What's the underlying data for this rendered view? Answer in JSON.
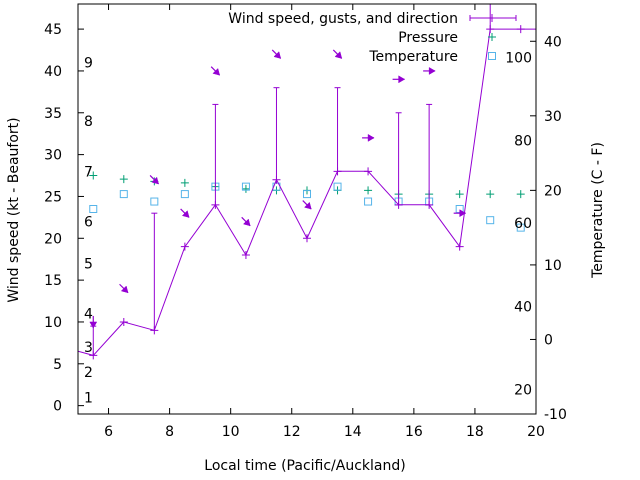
{
  "chart_data": {
    "type": "line",
    "xlabel": "Local time (Pacific/Auckland)",
    "ylabel": "Wind speed (kt - Beaufort)",
    "y2label": "Temperature (C - F)",
    "xlim": [
      5,
      20
    ],
    "ylim": [
      -1,
      48
    ],
    "y2lim": [
      -10,
      45
    ],
    "x_ticks": [
      6,
      8,
      10,
      12,
      14,
      16,
      18,
      20
    ],
    "y_ticks": [
      0,
      5,
      10,
      15,
      20,
      25,
      30,
      35,
      40,
      45
    ],
    "y2_ticks": [
      -10,
      0,
      10,
      20,
      30,
      40
    ],
    "beaufort_labels": [
      {
        "label": "1",
        "speed": 1
      },
      {
        "label": "2",
        "speed": 4
      },
      {
        "label": "3",
        "speed": 7
      },
      {
        "label": "4",
        "speed": 11
      },
      {
        "label": "5",
        "speed": 17
      },
      {
        "label": "6",
        "speed": 22
      },
      {
        "label": "7",
        "speed": 28
      },
      {
        "label": "8",
        "speed": 34
      },
      {
        "label": "9",
        "speed": 41
      }
    ],
    "fahrenheit_labels": [
      {
        "label": "20",
        "celsius": -6.7
      },
      {
        "label": "40",
        "celsius": 4.4
      },
      {
        "label": "60",
        "celsius": 15.6
      },
      {
        "label": "80",
        "celsius": 26.7
      },
      {
        "label": "100",
        "celsius": 37.8
      }
    ],
    "legend_position": "top-right",
    "grid": false,
    "colors": {
      "wind": "#9400d3",
      "pressure": "#009e73",
      "temperature": "#56b4e9"
    },
    "series": [
      {
        "name": "Wind speed, gusts, and direction",
        "x": [
          5,
          5.5,
          6.5,
          7.5,
          8.5,
          9.5,
          10.5,
          11.5,
          12.5,
          13.5,
          14.5,
          15.5,
          16.5,
          17.5,
          18.5,
          19.5,
          20
        ],
        "values": [
          6.5,
          6,
          10,
          9,
          19,
          24,
          18,
          27,
          20,
          28,
          28,
          24,
          24,
          19,
          45,
          45,
          45
        ],
        "gusts": [
          null,
          9.5,
          null,
          23,
          null,
          36,
          null,
          38,
          null,
          38,
          null,
          35,
          36,
          null,
          48,
          null,
          null
        ],
        "direction_arrows": [
          {
            "x": 5.5,
            "speed": 10,
            "dx": 0,
            "dy": 1
          },
          {
            "x": 6.5,
            "speed": 14,
            "dx": 1,
            "dy": 1
          },
          {
            "x": 7.5,
            "speed": 27,
            "dx": 1,
            "dy": 1
          },
          {
            "x": 8.5,
            "speed": 23,
            "dx": 1,
            "dy": 1
          },
          {
            "x": 9.5,
            "speed": 40,
            "dx": 1,
            "dy": 1
          },
          {
            "x": 10.5,
            "speed": 22,
            "dx": 1,
            "dy": 1
          },
          {
            "x": 11.5,
            "speed": 42,
            "dx": 1,
            "dy": 1
          },
          {
            "x": 12.5,
            "speed": 24,
            "dx": 1,
            "dy": 1
          },
          {
            "x": 13.5,
            "speed": 42,
            "dx": 1,
            "dy": 1
          },
          {
            "x": 14.5,
            "speed": 32,
            "dx": 1,
            "dy": 0
          },
          {
            "x": 15.5,
            "speed": 39,
            "dx": 1,
            "dy": 0
          },
          {
            "x": 16.5,
            "speed": 40,
            "dx": 1,
            "dy": 0
          },
          {
            "x": 17.5,
            "speed": 23,
            "dx": 1,
            "dy": 0
          }
        ]
      },
      {
        "name": "Pressure",
        "x": [
          5.5,
          6.5,
          7.5,
          8.5,
          9.5,
          10.5,
          11.5,
          12.5,
          13.5,
          14.5,
          15.5,
          16.5,
          17.5,
          18.5,
          19.5
        ],
        "values": [
          22,
          21.5,
          21.2,
          21,
          20.5,
          20.2,
          20,
          20,
          20,
          20,
          19.5,
          19.5,
          19.5,
          19.5,
          19.5
        ]
      },
      {
        "name": "Temperature",
        "x": [
          5.5,
          6.5,
          7.5,
          8.5,
          9.5,
          10.5,
          11.5,
          12.5,
          13.5,
          14.5,
          15.5,
          16.5,
          17.5,
          18.5,
          19.5
        ],
        "values": [
          17.5,
          19.5,
          18.5,
          19.5,
          20.5,
          20.5,
          20.5,
          19.5,
          20.5,
          18.5,
          18.5,
          18.5,
          17.5,
          16,
          15
        ]
      }
    ]
  }
}
